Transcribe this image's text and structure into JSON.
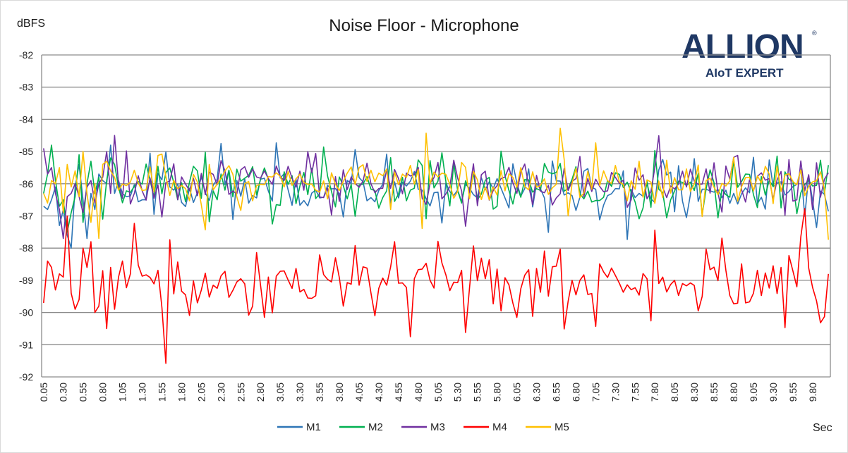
{
  "chart_data": {
    "type": "line",
    "title": "Noise Floor - Microphone",
    "ylabel": "dBFS",
    "xlabel": "Sec",
    "ylim": [
      -92,
      -82
    ],
    "yticks": [
      -82,
      -83,
      -84,
      -85,
      -86,
      -87,
      -88,
      -89,
      -90,
      -91,
      -92
    ],
    "xrange": [
      0.05,
      10.0
    ],
    "xstep": 0.05,
    "xtick_labels": [
      "0.05",
      "0.30",
      "0.55",
      "0.80",
      "1.05",
      "1.30",
      "1.55",
      "1.80",
      "2.05",
      "2.30",
      "2.55",
      "2.80",
      "3.05",
      "3.30",
      "3.55",
      "3.80",
      "4.05",
      "4.30",
      "4.55",
      "4.80",
      "5.05",
      "5.30",
      "5.55",
      "5.80",
      "6.05",
      "6.30",
      "6.55",
      "6.80",
      "7.05",
      "7.30",
      "7.55",
      "7.80",
      "8.05",
      "8.30",
      "8.55",
      "8.80",
      "9.05",
      "9.30",
      "9.55",
      "9.80"
    ],
    "grid": true,
    "legend_position": "bottom",
    "series": [
      {
        "name": "M1",
        "color": "#2e75b6",
        "mean": -86.2,
        "spread": 0.75,
        "seed": 11,
        "values_sample": [
          -86.7,
          -86.8,
          -86.5,
          -86.1,
          -87.3,
          -86.8,
          -87.6,
          -88.0,
          -86.1,
          -85.4,
          -86.5,
          -87.7,
          -86.3,
          -86.8,
          -85.7,
          -85.9,
          -86.0,
          -84.8,
          -86.3,
          -85.9
        ]
      },
      {
        "name": "M2",
        "color": "#00b050",
        "mean": -86.1,
        "spread": 0.8,
        "seed": 23,
        "values_sample": [
          -86.3,
          -85.7,
          -84.8,
          -85.9,
          -86.7,
          -86.5,
          -87.5,
          -86.9,
          -86.4,
          -85.1,
          -87.2,
          -86.0,
          -85.3,
          -86.3,
          -85.8,
          -87.1,
          -85.9,
          -85.2,
          -85.4,
          -86.1
        ]
      },
      {
        "name": "M3",
        "color": "#7030a0",
        "mean": -86.0,
        "spread": 0.75,
        "seed": 37,
        "values_sample": [
          -84.9,
          -85.7,
          -85.5,
          -86.3,
          -86.8,
          -87.7,
          -86.4,
          -86.3,
          -86.0,
          -86.4,
          -86.9,
          -86.1,
          -85.9,
          -86.6,
          -86.0,
          -85.8,
          -85.0,
          -86.3,
          -84.5,
          -86.0
        ]
      },
      {
        "name": "M4",
        "color": "#ff0000",
        "mean": -89.1,
        "spread": 0.9,
        "seed": 53,
        "values_sample": [
          -89.7,
          -88.4,
          -88.6,
          -89.3,
          -88.8,
          -88.9,
          -87.0,
          -89.4,
          -89.9,
          -89.6,
          -88.0,
          -88.6,
          -87.8,
          -90.0,
          -89.8,
          -88.7,
          -90.5,
          -88.6,
          -89.9,
          -88.9
        ]
      },
      {
        "name": "M5",
        "color": "#ffc000",
        "mean": -85.9,
        "spread": 0.65,
        "seed": 71,
        "values_sample": [
          -86.3,
          -86.6,
          -85.9,
          -86.0,
          -85.5,
          -86.9,
          -85.4,
          -86.1,
          -85.6,
          -86.4,
          -85.0,
          -86.3,
          -87.2,
          -86.0,
          -87.7,
          -85.4,
          -85.3,
          -85.6,
          -85.8,
          -86.2
        ]
      }
    ]
  },
  "logo": {
    "text": "ALLION",
    "registered": "®",
    "tagline": "AIoT EXPERT"
  }
}
